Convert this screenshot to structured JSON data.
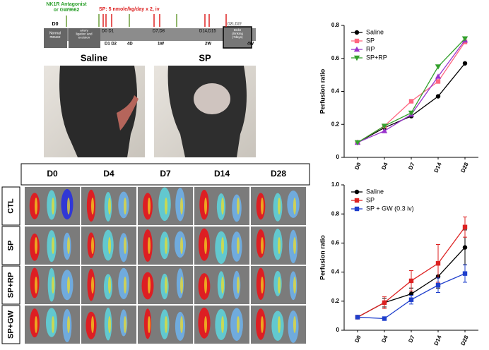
{
  "figure": {
    "timeline": {
      "antagonist": "NK1R Antagonist\nor GW9662",
      "sp_dose": "SP: 5 nmole/kg/day x 2, iv",
      "d0": "D0",
      "normal": "Normal\nmouse",
      "ligation": "Left femoral\nartery\nligation and\nexcision",
      "d0d1": "D0 D1",
      "d1d2": "D1 D2",
      "d4": "4D",
      "w1": "1W",
      "d7d8": "D7,D8",
      "d14d15": "D14,D15",
      "w2": "2W",
      "d21d22": "D21,D22",
      "brdu": "BrdU\ndrinking\n(7days)",
      "w4": "4W"
    },
    "photos": [
      "Saline",
      "SP"
    ],
    "grid": {
      "columns": [
        "D0",
        "D4",
        "D7",
        "D14",
        "D28"
      ],
      "rows": [
        "CTL",
        "SP",
        "SP+RP",
        "SP+GW"
      ]
    }
  },
  "chart_data": [
    {
      "type": "line",
      "ylabel": "Perfusion ratio",
      "categories": [
        "D0",
        "D4",
        "D7",
        "D14",
        "D28"
      ],
      "ylim": [
        0,
        0.8
      ],
      "yticks": [
        0,
        0.2,
        0.4,
        0.6,
        0.8
      ],
      "legend": "upper left",
      "series": [
        {
          "name": "Saline",
          "color": "#000000",
          "marker": "circle",
          "values": [
            0.09,
            0.18,
            0.25,
            0.37,
            0.57
          ]
        },
        {
          "name": "SP",
          "color": "#ff6680",
          "marker": "square",
          "values": [
            0.09,
            0.19,
            0.34,
            0.46,
            0.7
          ]
        },
        {
          "name": "RP",
          "color": "#9933cc",
          "marker": "triangle",
          "values": [
            0.09,
            0.16,
            0.26,
            0.49,
            0.71
          ]
        },
        {
          "name": "SP+RP",
          "color": "#33a02c",
          "marker": "triangle-down",
          "values": [
            0.09,
            0.19,
            0.27,
            0.55,
            0.72
          ]
        }
      ]
    },
    {
      "type": "line",
      "ylabel": "Perfusion ratio",
      "categories": [
        "D0",
        "D4",
        "D7",
        "D14",
        "D28"
      ],
      "ylim": [
        0,
        1
      ],
      "yticks": [
        0,
        0.2,
        0.4,
        0.6,
        0.8,
        {
          "value": 1,
          "label": "1.0"
        }
      ],
      "legend": "upper left",
      "series": [
        {
          "name": "Saline",
          "color": "#000000",
          "marker": "circle",
          "values": [
            0.09,
            0.19,
            0.25,
            0.37,
            0.57
          ],
          "errors": [
            0,
            0.03,
            0.04,
            0.08,
            0.12
          ]
        },
        {
          "name": "SP",
          "color": "#dd2222",
          "marker": "square",
          "values": [
            0.09,
            0.19,
            0.34,
            0.46,
            0.71
          ],
          "errors": [
            0,
            0.04,
            0.07,
            0.13,
            0.07
          ]
        },
        {
          "name": "SP + GW (0.3 iv)",
          "color": "#1f3fcc",
          "marker": "square",
          "values": [
            0.09,
            0.08,
            0.21,
            0.31,
            0.39
          ],
          "errors": [
            0,
            0,
            0.03,
            0.05,
            0.06
          ]
        }
      ]
    }
  ]
}
